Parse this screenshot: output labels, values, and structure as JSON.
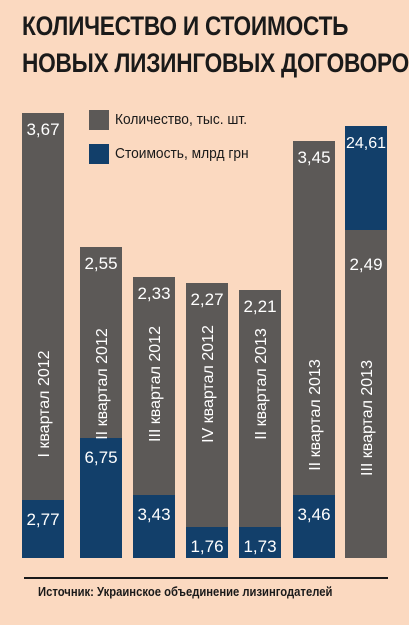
{
  "chart_data": {
    "type": "bar",
    "title": "КОЛИЧЕСТВО И СТОИМОСТЬ НОВЫХ ЛИЗИНГОВЫХ ДОГОВОРОВ",
    "title_lines": [
      "КОЛИЧЕСТВО И СТОИМОСТЬ",
      "НОВЫХ ЛИЗИНГОВЫХ ДОГОВОРОВ"
    ],
    "categories": [
      "I квартал 2012",
      "II квартал 2012",
      "III квартал 2012",
      "IV квартал 2012",
      "II квартал 2013",
      "II квартал 2013",
      "III квартал 2013"
    ],
    "series": [
      {
        "name": "Количество, тыс. шт.",
        "color": "#5c5957",
        "values": [
          3.67,
          2.55,
          2.33,
          2.27,
          2.21,
          3.45,
          2.49
        ],
        "labels": [
          "3,67",
          "2,55",
          "2,33",
          "2,27",
          "2,21",
          "3,45",
          "2,49"
        ]
      },
      {
        "name": "Стоимость, млрд грн",
        "color": "#123f6a",
        "values": [
          2.77,
          6.75,
          3.43,
          1.76,
          1.73,
          3.46,
          24.61
        ],
        "labels": [
          "2,77",
          "6,75",
          "3,43",
          "1,76",
          "1,73",
          "3,46",
          "24,61"
        ]
      }
    ],
    "legend_position": "top",
    "grid": false
  },
  "source": "Источник: Украинское объединение лизингодателей",
  "colors": {
    "background": "#fbd9c0",
    "count": "#5c5957",
    "value": "#123f6a",
    "text_light": "#ffffff",
    "text_dark": "#1a1a1a"
  }
}
